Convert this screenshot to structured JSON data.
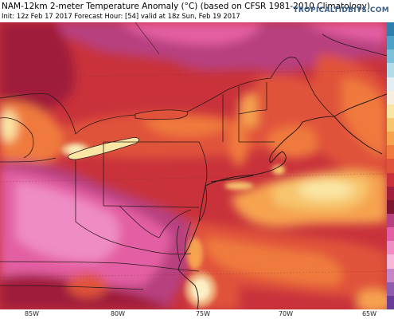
{
  "header": {
    "title": "NAM-12km 2-meter Temperature Anomaly (°C) (based on CFSR 1981-2010 Climatology)",
    "subtitle": "Init: 12z Feb 17 2017   Forecast Hour: [54]   valid at 18z Sun, Feb 19 2017",
    "brand": "TROPICALTIDBITS.COM"
  },
  "axis": {
    "longitude_labels": [
      "85W",
      "80W",
      "75W",
      "70W",
      "65W"
    ]
  },
  "map": {
    "region": "Northeastern United States and Atlantic Canada",
    "field": "2-meter temperature anomaly",
    "palette": {
      "deep_purple": "#7a2a72",
      "magenta": "#b8407f",
      "pink": "#e35fa3",
      "light_pink": "#ef8cc4",
      "crimson": "#a01f3a",
      "red": "#c9323b",
      "orange_red": "#e0533a",
      "orange": "#f07a3d",
      "light_orange": "#f6a24f",
      "tan": "#f7c56d",
      "pale_yellow": "#fae6a4",
      "white": "#fffdf4",
      "coastline": "#2a1a1a"
    }
  },
  "colorbar": {
    "colors": [
      "#2e7fb0",
      "#4ea2c8",
      "#7cc1d9",
      "#b2dce9",
      "#e2eef2",
      "#f6efe0",
      "#fae6a4",
      "#f7c56d",
      "#f6a24f",
      "#f07a3d",
      "#e0533a",
      "#c9323b",
      "#a01f3a",
      "#7d1530",
      "#b8407f",
      "#e35fa3",
      "#ef8cc4",
      "#f5b6da",
      "#c585c7",
      "#8f5cae",
      "#6a3c97"
    ]
  }
}
